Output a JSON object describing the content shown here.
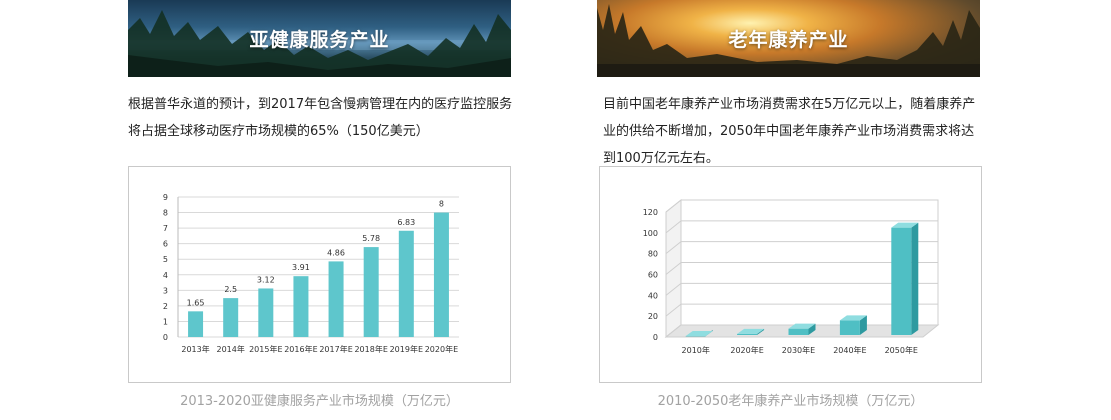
{
  "left": {
    "banner_title": "亚健康服务产业",
    "paragraph": "根据普华永道的预计，到2017年包含慢病管理在内的医疗监控服务将占据全球移动医疗市场规模的65%（150亿美元）",
    "caption": "2013-2020亚健康服务产业市场规模（万亿元）"
  },
  "right": {
    "banner_title": "老年康养产业",
    "paragraph": "目前中国老年康养产业市场消费需求在5万亿元以上，随着康养产业的供给不断增加，2050年中国老年康养产业市场消费需求将达到100万亿元左右。",
    "caption": "2010-2050老年康养产业市场规模（万亿元）"
  },
  "chart_data": [
    {
      "type": "bar",
      "title": "",
      "categories": [
        "2013年",
        "2014年",
        "2015年E",
        "2016年E",
        "2017年E",
        "2018年E",
        "2019年E",
        "2020年E"
      ],
      "values": [
        1.65,
        2.5,
        3.12,
        3.91,
        4.86,
        5.78,
        6.83,
        8
      ],
      "data_labels": [
        "1.65",
        "2.5",
        "3.12",
        "3.91",
        "4.86",
        "5.78",
        "6.83",
        "8"
      ],
      "ylim": [
        0,
        9
      ],
      "yticks": [
        0,
        1,
        2,
        3,
        4,
        5,
        6,
        7,
        8,
        9
      ],
      "grid": true,
      "color": "#5ec6cc"
    },
    {
      "type": "bar",
      "title": "",
      "style": "3d",
      "categories": [
        "2010年",
        "2020年E",
        "2030年E",
        "2040年E",
        "2050年E"
      ],
      "values": [
        1,
        3,
        8,
        16,
        105
      ],
      "ylim": [
        0,
        120
      ],
      "yticks": [
        0,
        20,
        40,
        60,
        80,
        100,
        120
      ],
      "grid": true,
      "color": "#4fbfc4"
    }
  ]
}
